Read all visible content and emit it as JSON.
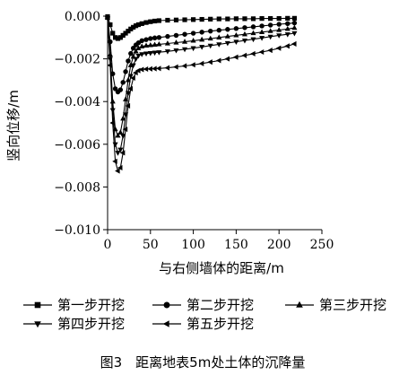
{
  "chart_data": {
    "type": "line",
    "title": "",
    "caption": "图3　距离地表5m处土体的沉降量",
    "xlabel": "与右侧墙体的距离/m",
    "ylabel": "竖向位移/m",
    "xlim": [
      0,
      250
    ],
    "ylim": [
      -0.01,
      0.0
    ],
    "x_ticks": [
      0,
      50,
      100,
      150,
      200,
      250
    ],
    "y_ticks": [
      0.0,
      -0.002,
      -0.004,
      -0.006,
      -0.008,
      -0.01
    ],
    "x_tick_labels": [
      "0",
      "50",
      "100",
      "150",
      "200",
      "250"
    ],
    "y_tick_labels": [
      "0.000",
      "−0.002",
      "−0.004",
      "−0.006",
      "−0.008",
      "−0.010"
    ],
    "grid": false,
    "legend_position": "bottom",
    "x": [
      0,
      3,
      6,
      9,
      12,
      15,
      18,
      21,
      24,
      27,
      30,
      33,
      36,
      40,
      45,
      50,
      55,
      60,
      70,
      80,
      90,
      100,
      110,
      120,
      130,
      140,
      150,
      160,
      170,
      180,
      190,
      200,
      210,
      218
    ],
    "series": [
      {
        "name": "第一步开挖",
        "marker": "square",
        "values": [
          -2e-05,
          -0.0004,
          -0.0008,
          -0.001,
          -0.00105,
          -0.001,
          -0.0009,
          -0.0008,
          -0.0007,
          -0.0006,
          -0.00052,
          -0.00045,
          -0.0004,
          -0.00035,
          -0.0003,
          -0.00026,
          -0.00023,
          -0.00021,
          -0.00019,
          -0.00018,
          -0.00017,
          -0.00016,
          -0.00015,
          -0.00014,
          -0.00013,
          -0.00013,
          -0.00012,
          -0.00012,
          -0.00012,
          -0.00011,
          -0.00011,
          -0.00011,
          -0.0001,
          -0.0001
        ]
      },
      {
        "name": "第二步开挖",
        "marker": "circle",
        "values": [
          -5e-05,
          -0.0012,
          -0.0027,
          -0.0034,
          -0.00355,
          -0.00345,
          -0.0031,
          -0.0026,
          -0.0021,
          -0.00175,
          -0.0015,
          -0.00135,
          -0.00125,
          -0.00115,
          -0.0011,
          -0.00105,
          -0.00102,
          -0.001,
          -0.00095,
          -0.0009,
          -0.00085,
          -0.0008,
          -0.00075,
          -0.0007,
          -0.00066,
          -0.00062,
          -0.00058,
          -0.00054,
          -0.0005,
          -0.00046,
          -0.00042,
          -0.00038,
          -0.00035,
          -0.00032
        ]
      },
      {
        "name": "第三步开挖",
        "marker": "triangle-up",
        "values": [
          -8e-05,
          -0.0018,
          -0.004,
          -0.0053,
          -0.0056,
          -0.00545,
          -0.0048,
          -0.0039,
          -0.003,
          -0.0023,
          -0.0019,
          -0.00165,
          -0.0015,
          -0.00142,
          -0.00138,
          -0.00136,
          -0.00134,
          -0.00132,
          -0.00128,
          -0.00124,
          -0.0012,
          -0.00115,
          -0.0011,
          -0.00105,
          -0.001,
          -0.00095,
          -0.0009,
          -0.00085,
          -0.0008,
          -0.00075,
          -0.0007,
          -0.00065,
          -0.0006,
          -0.00055
        ]
      },
      {
        "name": "第四步开挖",
        "marker": "triangle-down",
        "values": [
          -0.0001,
          -0.002,
          -0.0044,
          -0.006,
          -0.0064,
          -0.00625,
          -0.0056,
          -0.0046,
          -0.0036,
          -0.0028,
          -0.0023,
          -0.002,
          -0.00185,
          -0.00178,
          -0.00175,
          -0.00173,
          -0.00171,
          -0.00169,
          -0.00165,
          -0.0016,
          -0.00155,
          -0.0015,
          -0.00144,
          -0.00138,
          -0.00132,
          -0.00126,
          -0.0012,
          -0.00114,
          -0.00108,
          -0.00102,
          -0.00096,
          -0.0009,
          -0.00085,
          -0.0008
        ]
      },
      {
        "name": "第五步开挖",
        "marker": "triangle-left",
        "values": [
          -0.00012,
          -0.0023,
          -0.005,
          -0.0068,
          -0.00725,
          -0.0071,
          -0.0064,
          -0.0053,
          -0.0042,
          -0.0034,
          -0.0029,
          -0.00265,
          -0.00255,
          -0.0025,
          -0.00248,
          -0.00247,
          -0.00246,
          -0.00245,
          -0.00242,
          -0.00238,
          -0.00233,
          -0.00228,
          -0.00222,
          -0.00215,
          -0.00208,
          -0.002,
          -0.00192,
          -0.00184,
          -0.00176,
          -0.00168,
          -0.0016,
          -0.0015,
          -0.0014,
          -0.0013
        ]
      }
    ]
  }
}
